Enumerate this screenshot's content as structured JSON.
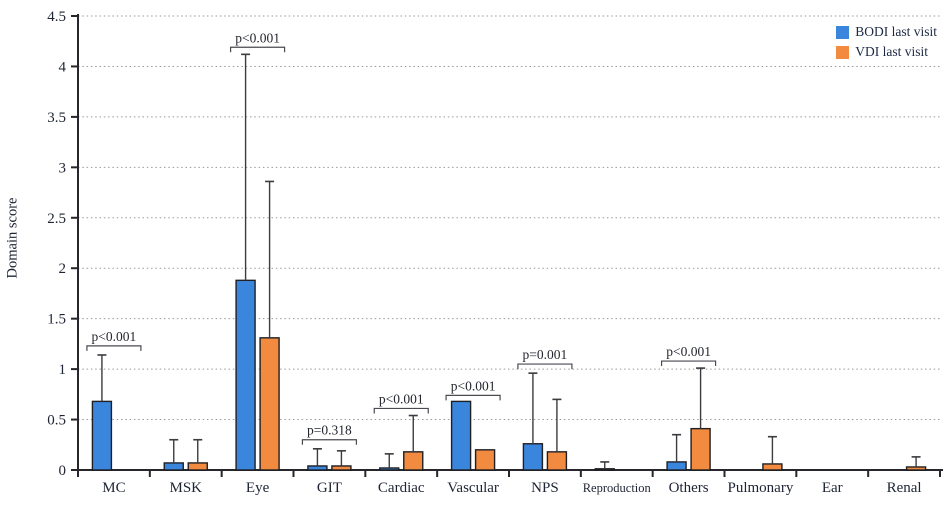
{
  "axes": {
    "y_label": "Domain score"
  },
  "legend": {
    "position": "top-right"
  },
  "chart_data": {
    "type": "bar",
    "title": "",
    "xlabel": "",
    "ylabel": "Domain score",
    "ylim": [
      0,
      4.5
    ],
    "ytick_step": 0.5,
    "ytick_labels": [
      "0",
      "0.5",
      "1",
      "1.5",
      "2",
      "2.5",
      "3",
      "3.5",
      "4",
      "4.5"
    ],
    "grid": "horizontal dotted lines at each 0.5",
    "legend_position": "top-right",
    "categories": [
      "MC",
      "MSK",
      "Eye",
      "GIT",
      "Cardiac",
      "Vascular",
      "NPS",
      "Reproduction",
      "Others",
      "Pulmonary",
      "Ear",
      "Renal"
    ],
    "series": [
      {
        "name": "BODI last visit",
        "color": "#3A86DD",
        "values": [
          0.68,
          0.07,
          1.88,
          0.04,
          0.02,
          0.68,
          0.26,
          0.01,
          0.08,
          0,
          0,
          0
        ],
        "error_upper": [
          1.14,
          0.3,
          4.12,
          0.21,
          0.16,
          null,
          0.96,
          0.08,
          0.35,
          null,
          null,
          null
        ]
      },
      {
        "name": "VDI last visit",
        "color": "#F28A3F",
        "values": [
          0,
          0.07,
          1.31,
          0.04,
          0.18,
          0.2,
          0.18,
          0,
          0.41,
          0.06,
          0,
          0.03
        ],
        "error_upper": [
          null,
          0.3,
          2.86,
          0.19,
          0.54,
          null,
          0.7,
          null,
          1.01,
          0.33,
          null,
          0.13
        ]
      }
    ],
    "significance": [
      {
        "category": "MC",
        "label": "p<0.001",
        "y": 1.23
      },
      {
        "category": "Eye",
        "label": "p<0.001",
        "y": 4.19
      },
      {
        "category": "GIT",
        "label": "p=0.318",
        "y": 0.3
      },
      {
        "category": "Cardiac",
        "label": "p<0.001",
        "y": 0.61
      },
      {
        "category": "Vascular",
        "label": "p<0.001",
        "y": 0.74
      },
      {
        "category": "NPS",
        "label": "p=0.001",
        "y": 1.05
      },
      {
        "category": "Others",
        "label": "p<0.001",
        "y": 1.08
      }
    ]
  }
}
